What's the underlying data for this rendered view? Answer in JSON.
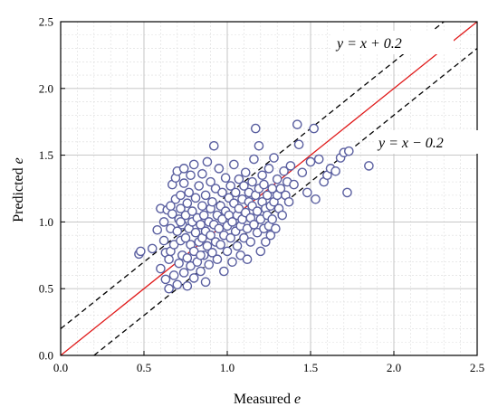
{
  "chart_data": {
    "type": "scatter",
    "title": "",
    "xlabel": "Measured e",
    "ylabel": "Predicted e",
    "xlim": [
      0.0,
      2.5
    ],
    "ylim": [
      0.0,
      2.5
    ],
    "x_ticks": [
      "0.0",
      "0.5",
      "1.0",
      "1.5",
      "2.0",
      "2.5"
    ],
    "y_ticks": [
      "0.0",
      "0.5",
      "1.0",
      "1.5",
      "2.0",
      "2.5"
    ],
    "grid": true,
    "minor_grid": true,
    "legend": "none",
    "colors": {
      "marker_edge": "#5a5fa0",
      "identity_line": "#e01a1a",
      "bound_lines": "#000000",
      "major_grid": "#c0c0c0",
      "minor_grid": "#dcdcdc"
    },
    "reference_lines": [
      {
        "equation": "y = x",
        "slope": 1,
        "intercept": 0.0,
        "style": "solid",
        "color": "#e01a1a"
      },
      {
        "equation": "y = x + 0.2",
        "slope": 1,
        "intercept": 0.2,
        "style": "dashed",
        "color": "#000000"
      },
      {
        "equation": "y = x − 0.2",
        "slope": 1,
        "intercept": -0.2,
        "style": "dashed",
        "color": "#000000"
      }
    ],
    "annotations": [
      "y = x + 0.2",
      "y = x − 0.2"
    ],
    "points": [
      [
        0.47,
        0.76
      ],
      [
        0.48,
        0.78
      ],
      [
        0.55,
        0.8
      ],
      [
        0.58,
        0.94
      ],
      [
        0.6,
        1.1
      ],
      [
        0.6,
        0.65
      ],
      [
        0.62,
        1.0
      ],
      [
        0.62,
        0.86
      ],
      [
        0.63,
        0.77
      ],
      [
        0.63,
        0.57
      ],
      [
        0.64,
        1.09
      ],
      [
        0.65,
        0.72
      ],
      [
        0.65,
        0.5
      ],
      [
        0.66,
        0.78
      ],
      [
        0.66,
        0.95
      ],
      [
        0.67,
        1.06
      ],
      [
        0.67,
        1.28
      ],
      [
        0.68,
        0.6
      ],
      [
        0.68,
        0.83
      ],
      [
        0.69,
        1.17
      ],
      [
        0.69,
        1.33
      ],
      [
        0.7,
        0.93
      ],
      [
        0.7,
        0.53
      ],
      [
        0.7,
        1.38
      ],
      [
        0.71,
        0.69
      ],
      [
        0.71,
        1.02
      ],
      [
        0.72,
        0.86
      ],
      [
        0.72,
        1.1
      ],
      [
        0.72,
        1.2
      ],
      [
        0.73,
        0.75
      ],
      [
        0.73,
        0.98
      ],
      [
        0.74,
        0.62
      ],
      [
        0.74,
        1.29
      ],
      [
        0.74,
        1.4
      ],
      [
        0.75,
        0.88
      ],
      [
        0.75,
        1.05
      ],
      [
        0.76,
        0.73
      ],
      [
        0.76,
        1.14
      ],
      [
        0.76,
        0.52
      ],
      [
        0.77,
        0.95
      ],
      [
        0.77,
        1.22
      ],
      [
        0.78,
        0.67
      ],
      [
        0.78,
        0.83
      ],
      [
        0.78,
        1.35
      ],
      [
        0.79,
        1.0
      ],
      [
        0.79,
        1.08
      ],
      [
        0.8,
        0.78
      ],
      [
        0.8,
        1.43
      ],
      [
        0.8,
        0.58
      ],
      [
        0.81,
        0.92
      ],
      [
        0.81,
        1.18
      ],
      [
        0.82,
        0.7
      ],
      [
        0.82,
        1.03
      ],
      [
        0.83,
        0.85
      ],
      [
        0.83,
        1.27
      ],
      [
        0.84,
        0.98
      ],
      [
        0.84,
        0.63
      ],
      [
        0.85,
        1.12
      ],
      [
        0.85,
        0.88
      ],
      [
        0.85,
        1.36
      ],
      [
        0.86,
        0.75
      ],
      [
        0.86,
        1.05
      ],
      [
        0.87,
        0.93
      ],
      [
        0.87,
        1.2
      ],
      [
        0.87,
        0.55
      ],
      [
        0.88,
        0.82
      ],
      [
        0.88,
        1.45
      ],
      [
        0.89,
        1.0
      ],
      [
        0.89,
        0.68
      ],
      [
        0.9,
        1.1
      ],
      [
        0.9,
        0.9
      ],
      [
        0.9,
        1.3
      ],
      [
        0.91,
        0.77
      ],
      [
        0.91,
        1.15
      ],
      [
        0.92,
        0.98
      ],
      [
        0.92,
        1.57
      ],
      [
        0.93,
        0.85
      ],
      [
        0.93,
        1.25
      ],
      [
        0.94,
        1.05
      ],
      [
        0.94,
        0.72
      ],
      [
        0.95,
        0.95
      ],
      [
        0.95,
        1.4
      ],
      [
        0.96,
        1.12
      ],
      [
        0.96,
        0.83
      ],
      [
        0.97,
        1.02
      ],
      [
        0.97,
        1.22
      ],
      [
        0.98,
        0.9
      ],
      [
        0.98,
        0.63
      ],
      [
        0.99,
        1.08
      ],
      [
        0.99,
        1.33
      ],
      [
        1.0,
        0.97
      ],
      [
        1.0,
        0.78
      ],
      [
        1.01,
        1.18
      ],
      [
        1.01,
        1.05
      ],
      [
        1.02,
        0.88
      ],
      [
        1.02,
        1.27
      ],
      [
        1.03,
        1.0
      ],
      [
        1.03,
        0.7
      ],
      [
        1.04,
        1.14
      ],
      [
        1.04,
        1.43
      ],
      [
        1.05,
        0.93
      ],
      [
        1.05,
        1.22
      ],
      [
        1.06,
        1.05
      ],
      [
        1.06,
        0.82
      ],
      [
        1.07,
        1.1
      ],
      [
        1.07,
        1.32
      ],
      [
        1.08,
        0.97
      ],
      [
        1.08,
        0.75
      ],
      [
        1.09,
        1.17
      ],
      [
        1.09,
        1.02
      ],
      [
        1.1,
        0.88
      ],
      [
        1.1,
        1.27
      ],
      [
        1.11,
        1.07
      ],
      [
        1.11,
        1.37
      ],
      [
        1.12,
        0.95
      ],
      [
        1.12,
        0.72
      ],
      [
        1.13,
        1.15
      ],
      [
        1.13,
        1.22
      ],
      [
        1.14,
        1.03
      ],
      [
        1.14,
        0.85
      ],
      [
        1.15,
        1.12
      ],
      [
        1.15,
        1.3
      ],
      [
        1.16,
        0.98
      ],
      [
        1.16,
        1.47
      ],
      [
        1.17,
        1.2
      ],
      [
        1.17,
        1.7
      ],
      [
        1.18,
        0.92
      ],
      [
        1.18,
        1.08
      ],
      [
        1.19,
        1.25
      ],
      [
        1.19,
        1.57
      ],
      [
        1.2,
        1.02
      ],
      [
        1.2,
        0.78
      ],
      [
        1.21,
        1.15
      ],
      [
        1.21,
        1.35
      ],
      [
        1.22,
        0.95
      ],
      [
        1.22,
        1.28
      ],
      [
        1.23,
        1.1
      ],
      [
        1.23,
        0.85
      ],
      [
        1.24,
        1.2
      ],
      [
        1.24,
        1.05
      ],
      [
        1.25,
        0.97
      ],
      [
        1.25,
        1.4
      ],
      [
        1.26,
        1.12
      ],
      [
        1.26,
        0.9
      ],
      [
        1.27,
        1.25
      ],
      [
        1.27,
        1.02
      ],
      [
        1.28,
        1.15
      ],
      [
        1.28,
        1.48
      ],
      [
        1.29,
        0.95
      ],
      [
        1.3,
        1.2
      ],
      [
        1.3,
        1.32
      ],
      [
        1.31,
        1.1
      ],
      [
        1.32,
        1.25
      ],
      [
        1.33,
        1.05
      ],
      [
        1.34,
        1.38
      ],
      [
        1.35,
        1.2
      ],
      [
        1.36,
        1.3
      ],
      [
        1.37,
        1.15
      ],
      [
        1.38,
        1.42
      ],
      [
        1.4,
        1.28
      ],
      [
        1.42,
        1.73
      ],
      [
        1.43,
        1.58
      ],
      [
        1.45,
        1.37
      ],
      [
        1.48,
        1.22
      ],
      [
        1.5,
        1.45
      ],
      [
        1.52,
        1.7
      ],
      [
        1.53,
        1.17
      ],
      [
        1.55,
        1.47
      ],
      [
        1.58,
        1.3
      ],
      [
        1.6,
        1.35
      ],
      [
        1.62,
        1.4
      ],
      [
        1.65,
        1.38
      ],
      [
        1.68,
        1.48
      ],
      [
        1.7,
        1.52
      ],
      [
        1.72,
        1.22
      ],
      [
        1.73,
        1.53
      ],
      [
        1.85,
        1.42
      ],
      [
        0.66,
        1.12
      ],
      [
        0.72,
        1.0
      ],
      [
        0.84,
        0.75
      ]
    ]
  }
}
